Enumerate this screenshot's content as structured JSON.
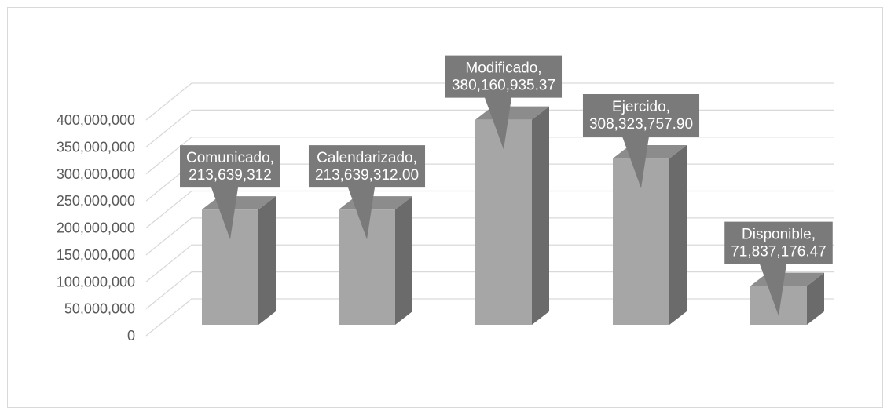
{
  "chart_data": {
    "type": "bar",
    "categories": [
      "Comunicado",
      "Calendarizado",
      "Modificado",
      "Ejercido",
      "Disponible"
    ],
    "values": [
      213639312,
      213639312.0,
      380160935.37,
      308323757.9,
      71837176.47
    ],
    "data_labels": [
      [
        "Comunicado,",
        "213,639,312"
      ],
      [
        "Calendarizado,",
        "213,639,312.00"
      ],
      [
        "Modificado,",
        "380,160,935.37"
      ],
      [
        "Ejercido,",
        "308,323,757.90"
      ],
      [
        "Disponible,",
        "71,837,176.47"
      ]
    ],
    "y_tick_labels": [
      "0",
      "50,000,000",
      "100,000,000",
      "150,000,000",
      "200,000,000",
      "250,000,000",
      "300,000,000",
      "350,000,000",
      "400,000,000"
    ],
    "ylim": [
      0,
      400000000
    ],
    "y_step": 50000000,
    "title": "",
    "xlabel": "",
    "ylabel": "",
    "grid": true,
    "three_d": true,
    "colors": {
      "bar_front": "#a6a6a6",
      "bar_side": "#6b6b6b",
      "bar_top": "#8c8c8c",
      "callout": "#7a7a7a",
      "grid": "#d9d9d9",
      "axis_text": "#595959"
    }
  }
}
